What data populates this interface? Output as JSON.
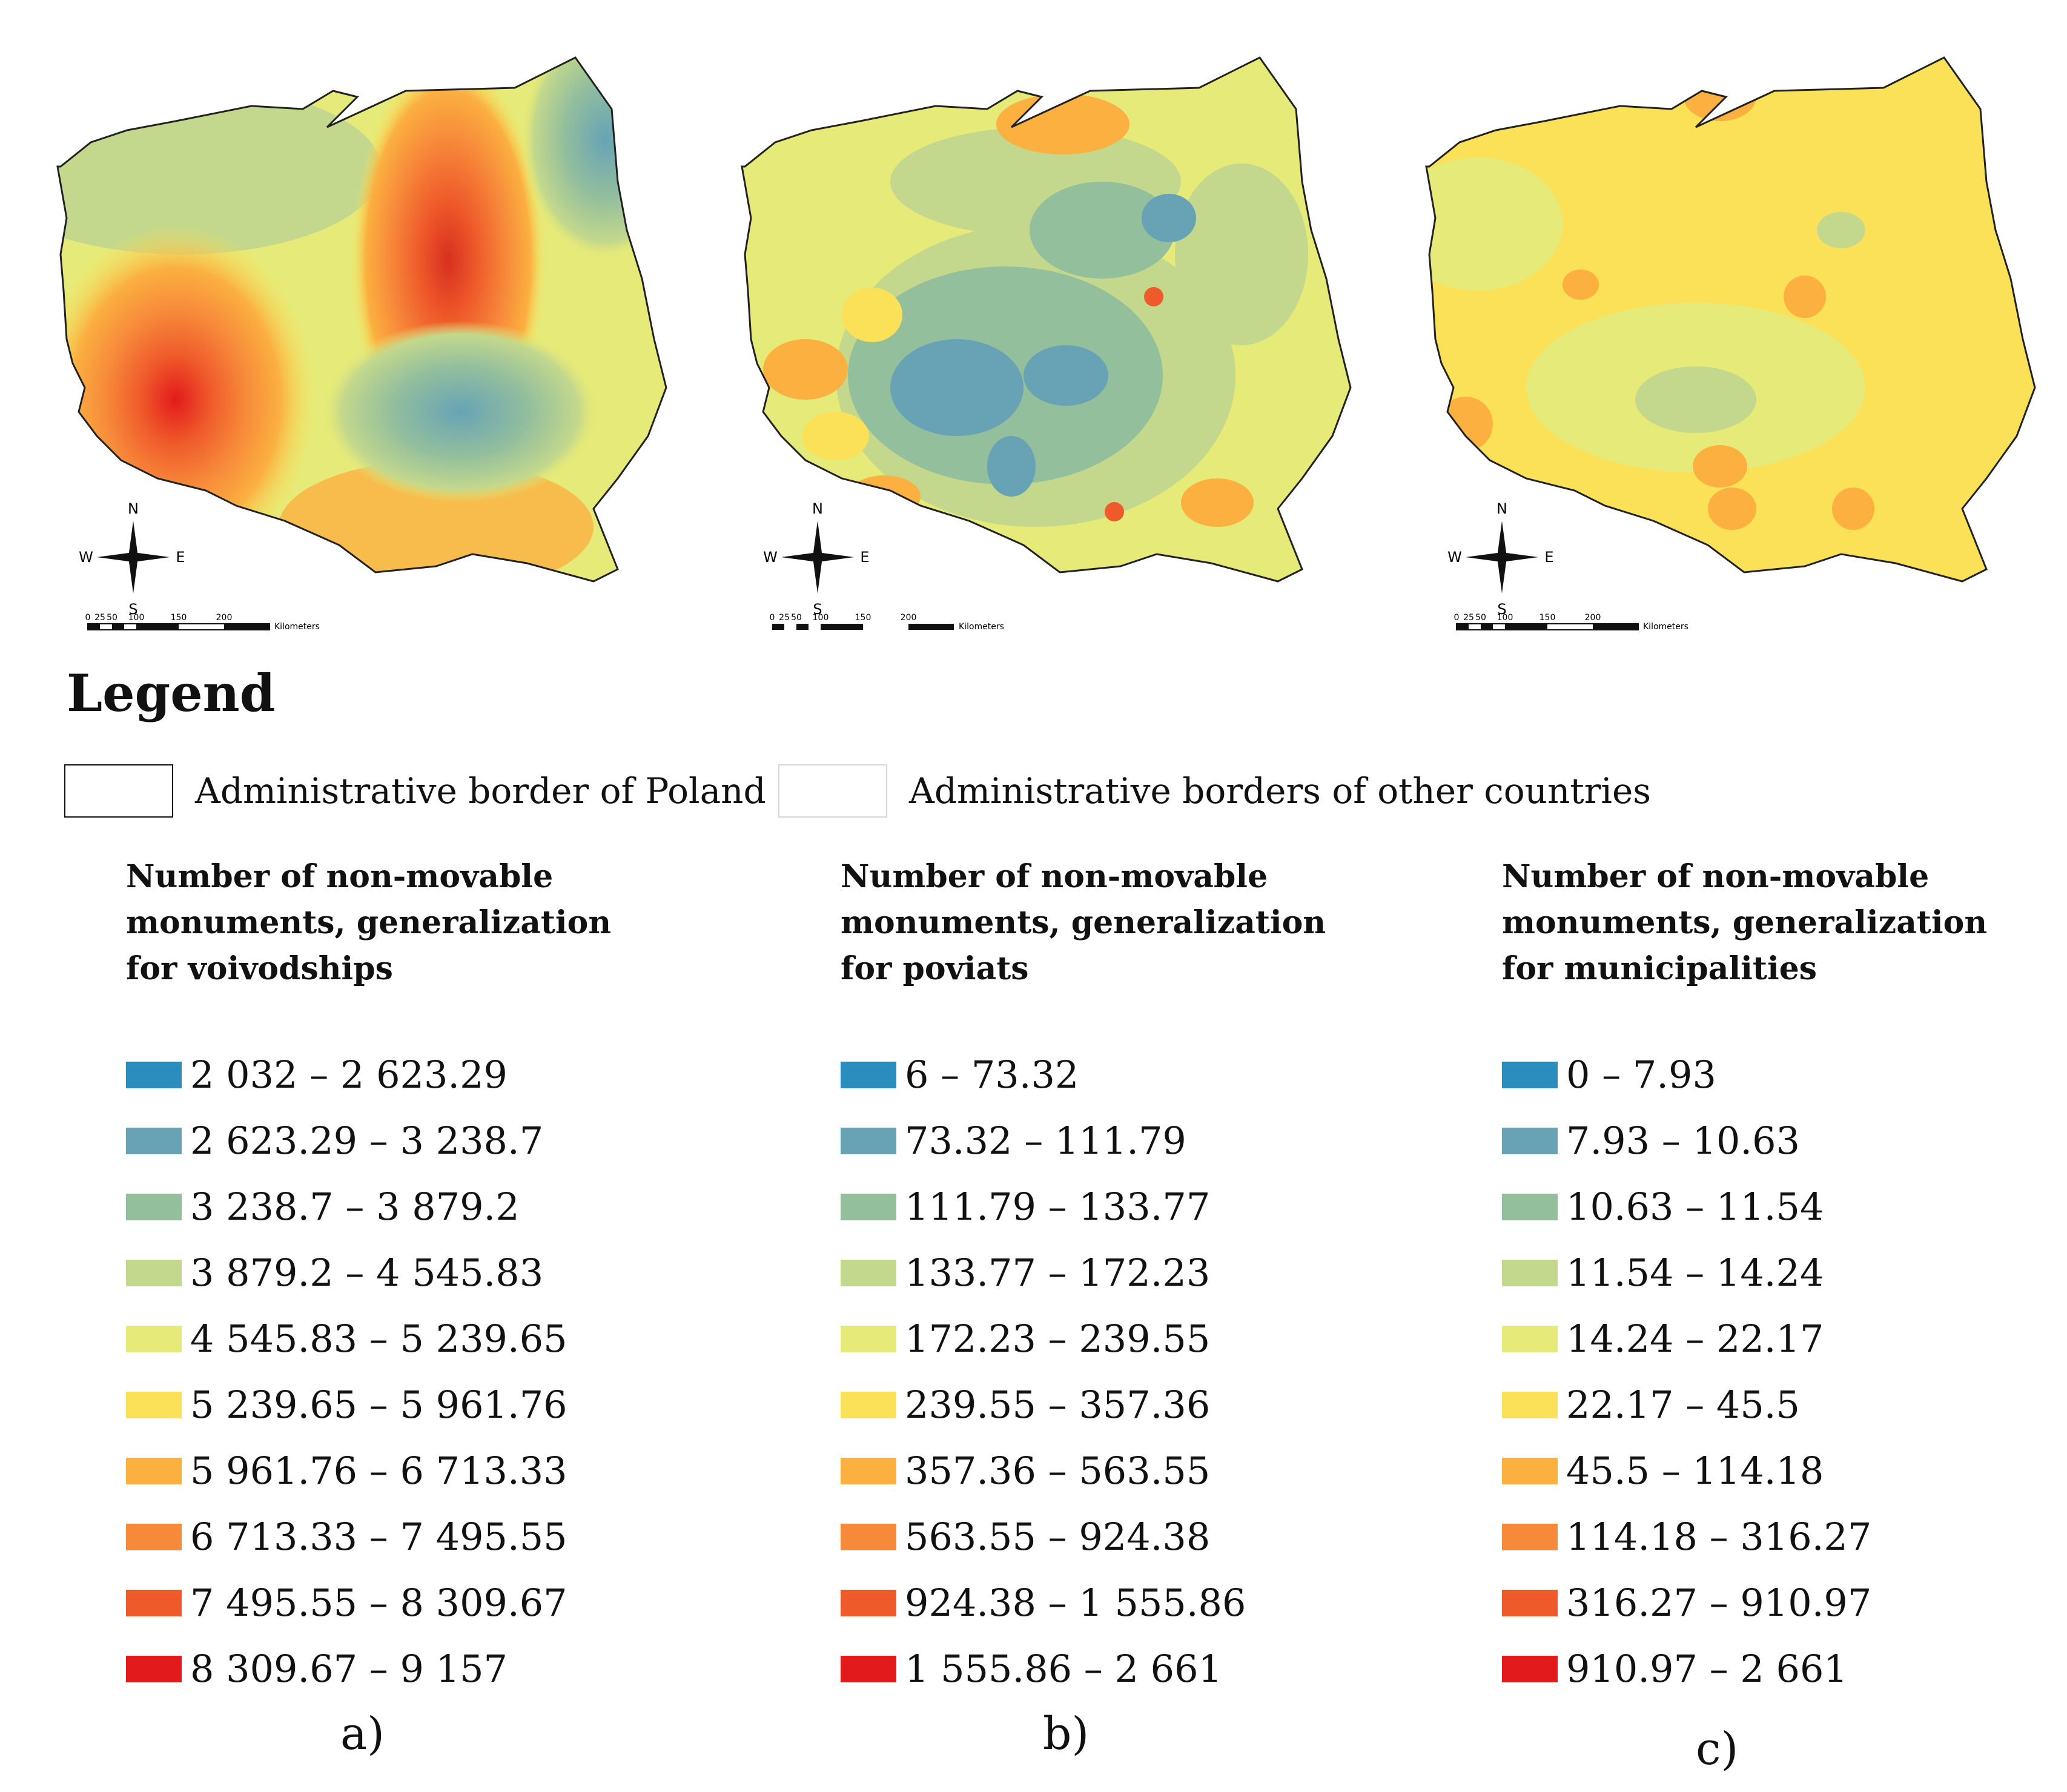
{
  "maps": [
    {
      "id": "a",
      "panel_label": "a)",
      "legend_heading": "Number of non-movable monuments, generalization for voivodships",
      "classes": [
        "2 032 – 2 623.29",
        "2 623.29 – 3 238.7",
        "3 238.7 – 3 879.2",
        "3 879.2 – 4 545.83",
        "4 545.83 – 5 239.65",
        "5 239.65 – 5 961.76",
        "5 961.76 – 6 713.33",
        "6 713.33 – 7 495.55",
        "7 495.55 – 8 309.67",
        "8 309.67 – 9 157"
      ],
      "scale_ticks": [
        "0",
        "25",
        "50",
        "100",
        "150",
        "200"
      ],
      "scale_unit": "Kilometers"
    },
    {
      "id": "b",
      "panel_label": "b)",
      "legend_heading": "Number of non-movable monuments, generalization for poviats",
      "classes": [
        "6 – 73.32",
        "73.32 – 111.79",
        "111.79 – 133.77",
        "133.77 – 172.23",
        "172.23 – 239.55",
        "239.55 – 357.36",
        "357.36 – 563.55",
        "563.55 – 924.38",
        "924.38 – 1 555.86",
        "1 555.86 – 2 661"
      ],
      "scale_ticks": [
        "0",
        "25",
        "50",
        "100",
        "150",
        "200"
      ],
      "scale_unit": "Kilometers"
    },
    {
      "id": "c",
      "panel_label": "c)",
      "legend_heading": "Number of non-movable monuments, generalization for municipalities",
      "classes": [
        "0 – 7.93",
        "7.93 – 10.63",
        "10.63 – 11.54",
        "11.54 – 14.24",
        "14.24 – 22.17",
        "22.17 – 45.5",
        "45.5 – 114.18",
        "114.18 – 316.27",
        "316.27 – 910.97",
        "910.97 – 2 661"
      ],
      "scale_ticks": [
        "0",
        "25",
        "50",
        "100",
        "150",
        "200"
      ],
      "scale_unit": "Kilometers"
    }
  ],
  "class_colors": [
    "#2b8cbe",
    "#67a3b5",
    "#94bf9d",
    "#c3d88c",
    "#e6ea78",
    "#fbe158",
    "#fbb040",
    "#f7893a",
    "#ef5a2a",
    "#e31a1c"
  ],
  "legend": {
    "title": "Legend",
    "poland_border_label": "Administrative border of Poland",
    "other_borders_label": "Administrative borders of other countries"
  },
  "compass": {
    "n": "N",
    "s": "S",
    "e": "E",
    "w": "W"
  }
}
